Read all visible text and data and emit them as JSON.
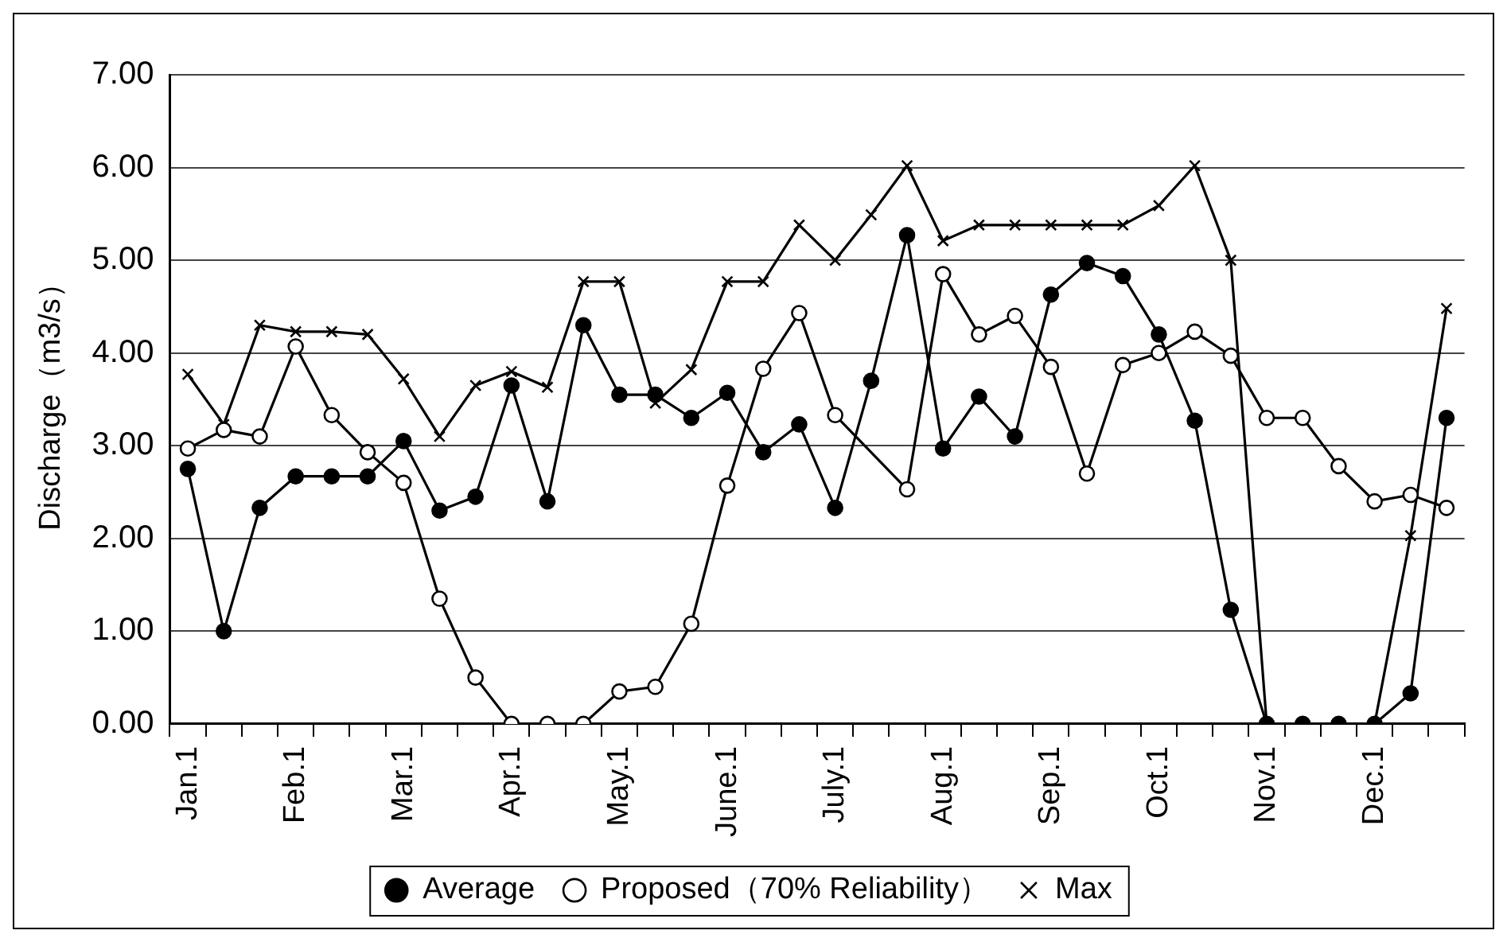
{
  "chart_data": {
    "type": "line",
    "ylabel": "Discharge（m3/s）",
    "categories": [
      "Jan.1",
      null,
      null,
      "Feb.1",
      null,
      null,
      "Mar.1",
      null,
      null,
      "Apr.1",
      null,
      null,
      "May.1",
      null,
      null,
      "June.1",
      null,
      null,
      "July.1",
      null,
      null,
      "Aug.1",
      null,
      null,
      "Sep.1",
      null,
      null,
      "Oct.1",
      null,
      null,
      "Nov.1",
      null,
      null,
      "Dec.1",
      null,
      null
    ],
    "series": [
      {
        "name": "Average",
        "color": "#000000",
        "marker": "circle",
        "values": [
          2.75,
          1.0,
          2.33,
          2.67,
          2.67,
          2.67,
          3.05,
          2.3,
          2.45,
          3.65,
          2.4,
          4.3,
          3.55,
          3.55,
          3.3,
          3.57,
          2.93,
          3.23,
          2.33,
          3.7,
          5.27,
          2.97,
          3.53,
          3.1,
          4.63,
          4.97,
          4.83,
          4.2,
          3.27,
          1.23,
          0,
          0,
          0,
          0,
          0.33,
          3.3
        ]
      },
      {
        "name": "Proposed（70% Reliability）",
        "color": "#000000",
        "marker": "circle",
        "values": [
          2.97,
          3.17,
          3.1,
          4.07,
          3.33,
          2.93,
          2.6,
          1.35,
          0.5,
          0,
          0,
          0,
          0.35,
          0.4,
          1.08,
          2.57,
          3.83,
          4.43,
          3.33,
          null,
          2.53,
          4.85,
          4.2,
          4.4,
          3.85,
          2.7,
          3.87,
          4.0,
          4.23,
          3.97,
          3.3,
          3.3,
          2.78,
          2.4,
          2.47,
          2.33
        ]
      },
      {
        "name": "Max",
        "color": "#000000",
        "marker": "cross",
        "values": [
          3.77,
          3.23,
          4.3,
          4.23,
          4.23,
          4.2,
          3.72,
          3.1,
          3.65,
          3.8,
          3.63,
          4.77,
          4.77,
          3.46,
          3.82,
          4.77,
          4.77,
          5.38,
          5.0,
          5.49,
          6.02,
          5.21,
          5.38,
          5.38,
          5.38,
          5.38,
          5.38,
          5.59,
          6.02,
          5.0,
          0,
          0,
          0,
          0,
          2.03,
          4.48
        ]
      }
    ],
    "ylim": [
      0,
      7
    ],
    "yticks": [
      {
        "value": 0,
        "label": "0.00"
      },
      {
        "value": 1,
        "label": "1.00"
      },
      {
        "value": 2,
        "label": "2.00"
      },
      {
        "value": 3,
        "label": "3.00"
      },
      {
        "value": 4,
        "label": "4.00"
      },
      {
        "value": 5,
        "label": "5.00"
      },
      {
        "value": 6,
        "label": "6.00"
      },
      {
        "value": 7,
        "label": "7.00"
      }
    ],
    "grid": "y",
    "legend": "bottom",
    "line_style": "solid"
  }
}
